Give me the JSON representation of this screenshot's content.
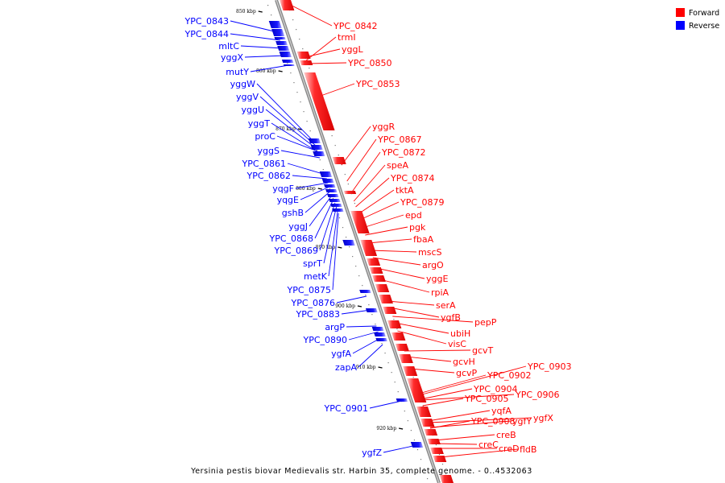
{
  "caption": "Yersinia pestis biovar Medievalis str. Harbin 35, complete genome. - 0..4532063",
  "legend": [
    {
      "label": "Forward",
      "color": "#ff0000"
    },
    {
      "label": "Reverse",
      "color": "#0000ff"
    }
  ],
  "ticks": [
    "850 kbp",
    "860 kbp",
    "870 kbp",
    "880 kbp",
    "890 kbp",
    "900 kbp",
    "910 kbp",
    "920 kbp"
  ],
  "reverse_genes": [
    "YPC_0843",
    "YPC_0844",
    "mltC",
    "yggX",
    "mutY",
    "yggW",
    "yggV",
    "yggU",
    "yggT",
    "proC",
    "yggS",
    "YPC_0861",
    "YPC_0862",
    "yqgF",
    "yqgE",
    "gshB",
    "yggJ",
    "YPC_0868",
    "YPC_0869",
    "sprT",
    "metK",
    "YPC_0875",
    "YPC_0876",
    "YPC_0883",
    "argP",
    "YPC_0890",
    "ygfA",
    "zapA",
    "YPC_0901",
    "ygfZ"
  ],
  "forward_genes": [
    "YPC_0842",
    "trmI",
    "yggL",
    "YPC_0850",
    "YPC_0853",
    "yggR",
    "YPC_0867",
    "YPC_0872",
    "speA",
    "YPC_0874",
    "tktA",
    "YPC_0879",
    "epd",
    "pgk",
    "fbaA",
    "mscS",
    "argO",
    "yggE",
    "rpiA",
    "serA",
    "ygfB",
    "pepP",
    "ubiH",
    "visC",
    "gcvT",
    "gcvH",
    "gcvP",
    "YPC_0902",
    "YPC_0903",
    "YPC_0904",
    "YPC_0905",
    "YPC_0906",
    "yqfA",
    "YPC_0908",
    "ygfY",
    "ygfX",
    "creB",
    "creC",
    "creD",
    "fldB"
  ]
}
